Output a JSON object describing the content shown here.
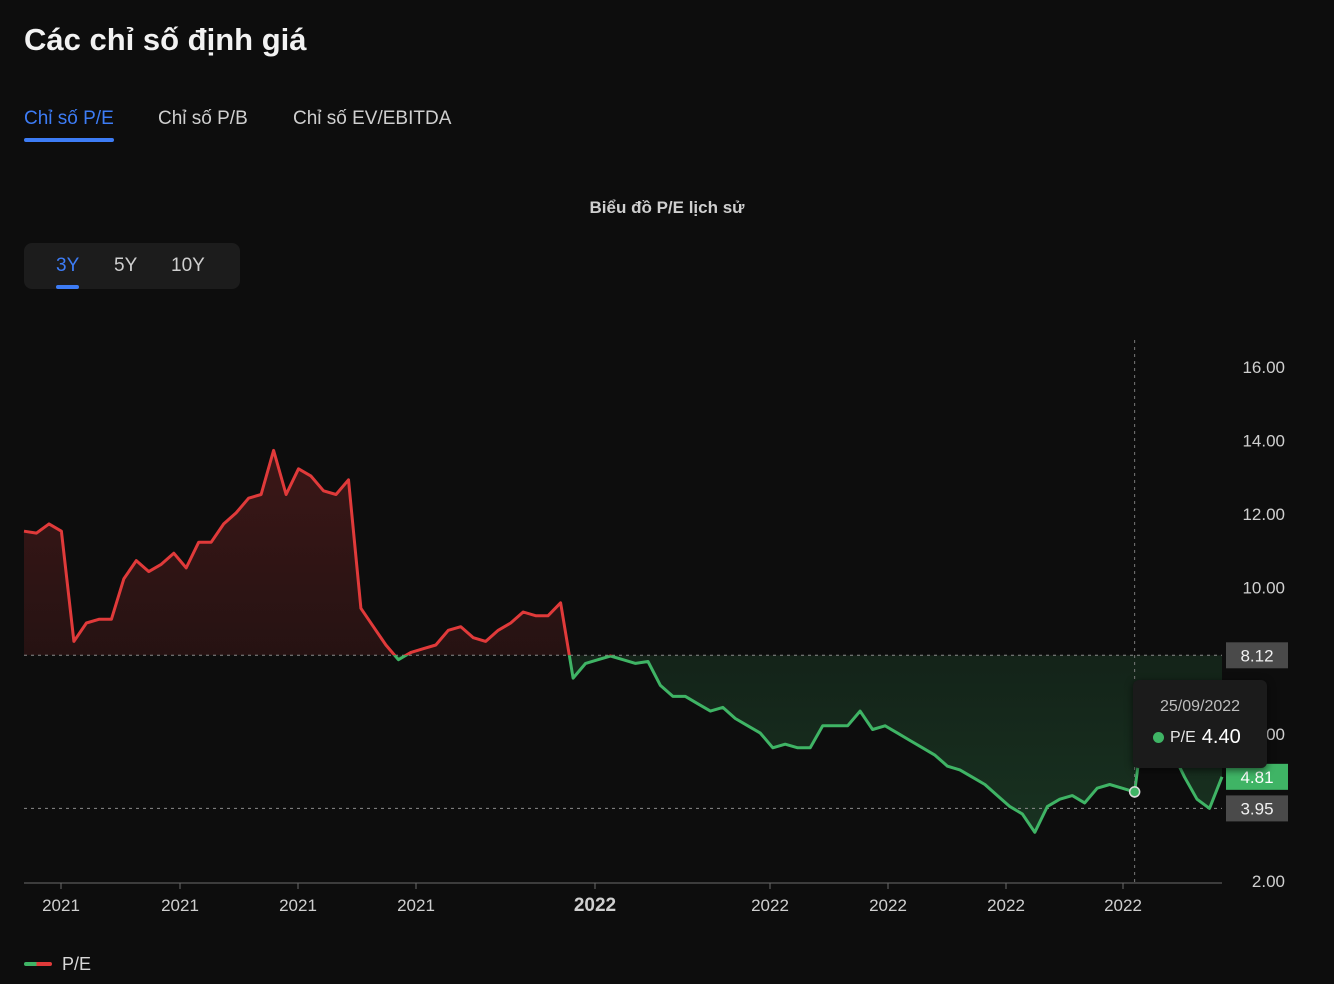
{
  "page": {
    "title": "Các chỉ số định giá"
  },
  "tabs": [
    {
      "label": "Chỉ số P/E",
      "active": true
    },
    {
      "label": "Chỉ số P/B",
      "active": false
    },
    {
      "label": "Chỉ số EV/EBITDA",
      "active": false
    }
  ],
  "chart_heading": "Biểu đồ P/E lịch sử",
  "periods": [
    {
      "label": "3Y",
      "active": true
    },
    {
      "label": "5Y",
      "active": false
    },
    {
      "label": "10Y",
      "active": false
    }
  ],
  "legend": {
    "label": "P/E"
  },
  "tooltip": {
    "date": "25/09/2022",
    "label": "P/E",
    "value": "4.40"
  },
  "colors": {
    "accent": "#3d7cf5",
    "above_avg": "#e03a3a",
    "below_avg": "#3fb465",
    "background": "#0d0d0d"
  },
  "chart_data": {
    "type": "line",
    "title": "Biểu đồ P/E lịch sử",
    "xlabel": "",
    "ylabel": "",
    "ylim": [
      2,
      16.6
    ],
    "y_ticks": [
      "16.00",
      "14.00",
      "12.00",
      "10.00",
      "6.00",
      "2.00"
    ],
    "x_tick_labels": [
      "2021",
      "2021",
      "2021",
      "2021",
      "2022",
      "2022",
      "2022",
      "2022",
      "2022"
    ],
    "x_tick_bold": [
      false,
      false,
      false,
      false,
      true,
      false,
      false,
      false,
      false
    ],
    "reference_lines": [
      {
        "value": 8.12,
        "label": "8.12"
      },
      {
        "value": 3.95,
        "label": "3.95"
      }
    ],
    "last_value": {
      "value": 4.81,
      "label": "4.81"
    },
    "crosshair_index": 89,
    "grid": false,
    "legend_position": "bottom-left",
    "series": [
      {
        "name": "P/E",
        "values": [
          11.5,
          11.45,
          11.7,
          11.5,
          8.5,
          9.0,
          9.1,
          9.1,
          10.2,
          10.7,
          10.4,
          10.6,
          10.9,
          10.5,
          11.2,
          11.2,
          11.7,
          12.0,
          12.4,
          12.5,
          13.7,
          12.5,
          13.2,
          13.0,
          12.6,
          12.5,
          12.9,
          9.4,
          8.9,
          8.4,
          8.0,
          8.2,
          8.3,
          8.4,
          8.8,
          8.9,
          8.6,
          8.5,
          8.8,
          9.0,
          9.3,
          9.2,
          9.2,
          9.55,
          7.5,
          7.9,
          8.0,
          8.1,
          8.0,
          7.9,
          7.95,
          7.3,
          7.0,
          7.0,
          6.8,
          6.6,
          6.7,
          6.4,
          6.2,
          6.0,
          5.6,
          5.7,
          5.6,
          5.6,
          6.2,
          6.2,
          6.2,
          6.6,
          6.1,
          6.2,
          6.0,
          5.8,
          5.6,
          5.4,
          5.1,
          5.0,
          4.8,
          4.6,
          4.3,
          4.0,
          3.8,
          3.3,
          4.0,
          4.2,
          4.3,
          4.1,
          4.5,
          4.6,
          4.5,
          4.4,
          7.0,
          6.5,
          5.5,
          4.8,
          4.2,
          3.95,
          4.81
        ]
      }
    ]
  }
}
